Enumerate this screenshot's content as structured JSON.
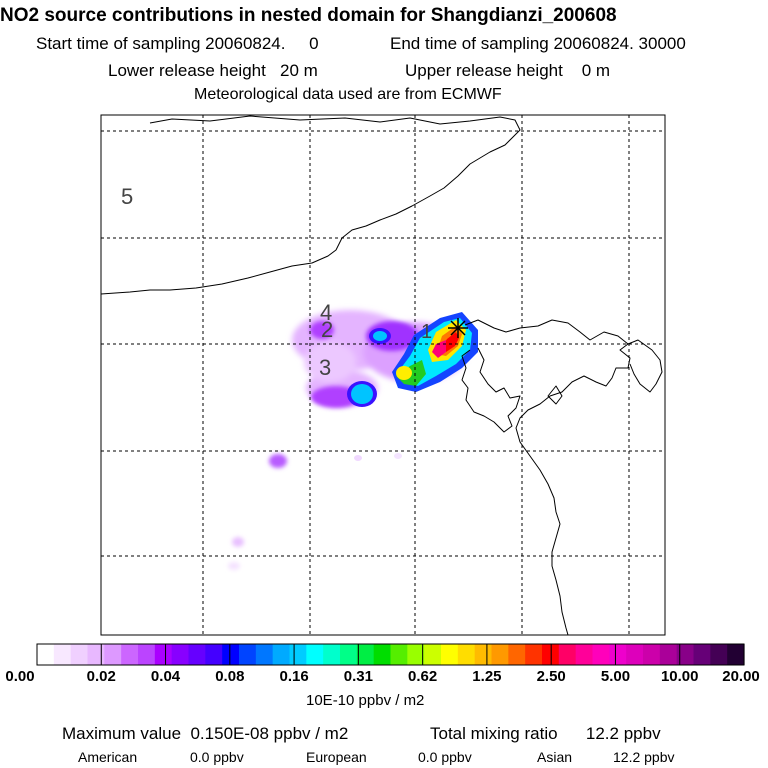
{
  "header": {
    "title": "NO2 source contributions in nested domain for Shangdianzi_200608",
    "start_label": "Start time of sampling 20060824.     0",
    "end_label": "End time of sampling 20060824. 30000",
    "lower_label": "Lower release height   20 m",
    "upper_label": "Upper release height    0 m",
    "met_label": "Meteorological data used are from ECMWF"
  },
  "map": {
    "region_labels": [
      "5",
      "4",
      "2",
      "3",
      "1"
    ],
    "receptor_marker": "star-marker",
    "colors": {
      "frame": "#000000",
      "grid": "#000000",
      "coast": "#000000"
    }
  },
  "colorbar": {
    "tick_labels": [
      "0.00",
      "0.02",
      "0.04",
      "0.08",
      "0.16",
      "0.31",
      "0.62",
      "1.25",
      "2.50",
      "5.00",
      "10.00",
      "20.00"
    ],
    "unit_label": "10E-10 ppbv / m2",
    "colors": [
      "#ffffff",
      "#f8e8ff",
      "#f0d0ff",
      "#e8b8ff",
      "#dd99ff",
      "#cc66ff",
      "#bb44ff",
      "#aa00ff",
      "#8800ff",
      "#6600ff",
      "#4400ff",
      "#0000ff",
      "#0044ff",
      "#0077ff",
      "#00aaff",
      "#00ccff",
      "#00ffff",
      "#00ffcc",
      "#00ff88",
      "#00ee44",
      "#00dd00",
      "#55ee00",
      "#99ff00",
      "#ccff00",
      "#ffff00",
      "#ffdd00",
      "#ffbb00",
      "#ff9900",
      "#ff6600",
      "#ff3300",
      "#ff0000",
      "#ff0066",
      "#ff0099",
      "#ff00bb",
      "#ee00cc",
      "#dd00bb",
      "#cc00aa",
      "#aa0099",
      "#880088",
      "#660077",
      "#440055",
      "#220033"
    ]
  },
  "footer": {
    "max_label": "Maximum value  0.150E-08 ppbv / m2",
    "total_label": "Total mixing ratio      12.2 ppbv",
    "american_label": "American",
    "american_value": "0.0 ppbv",
    "european_label": "European",
    "european_value": "0.0 ppbv",
    "asian_label": "Asian",
    "asian_value": "12.2 ppbv"
  }
}
